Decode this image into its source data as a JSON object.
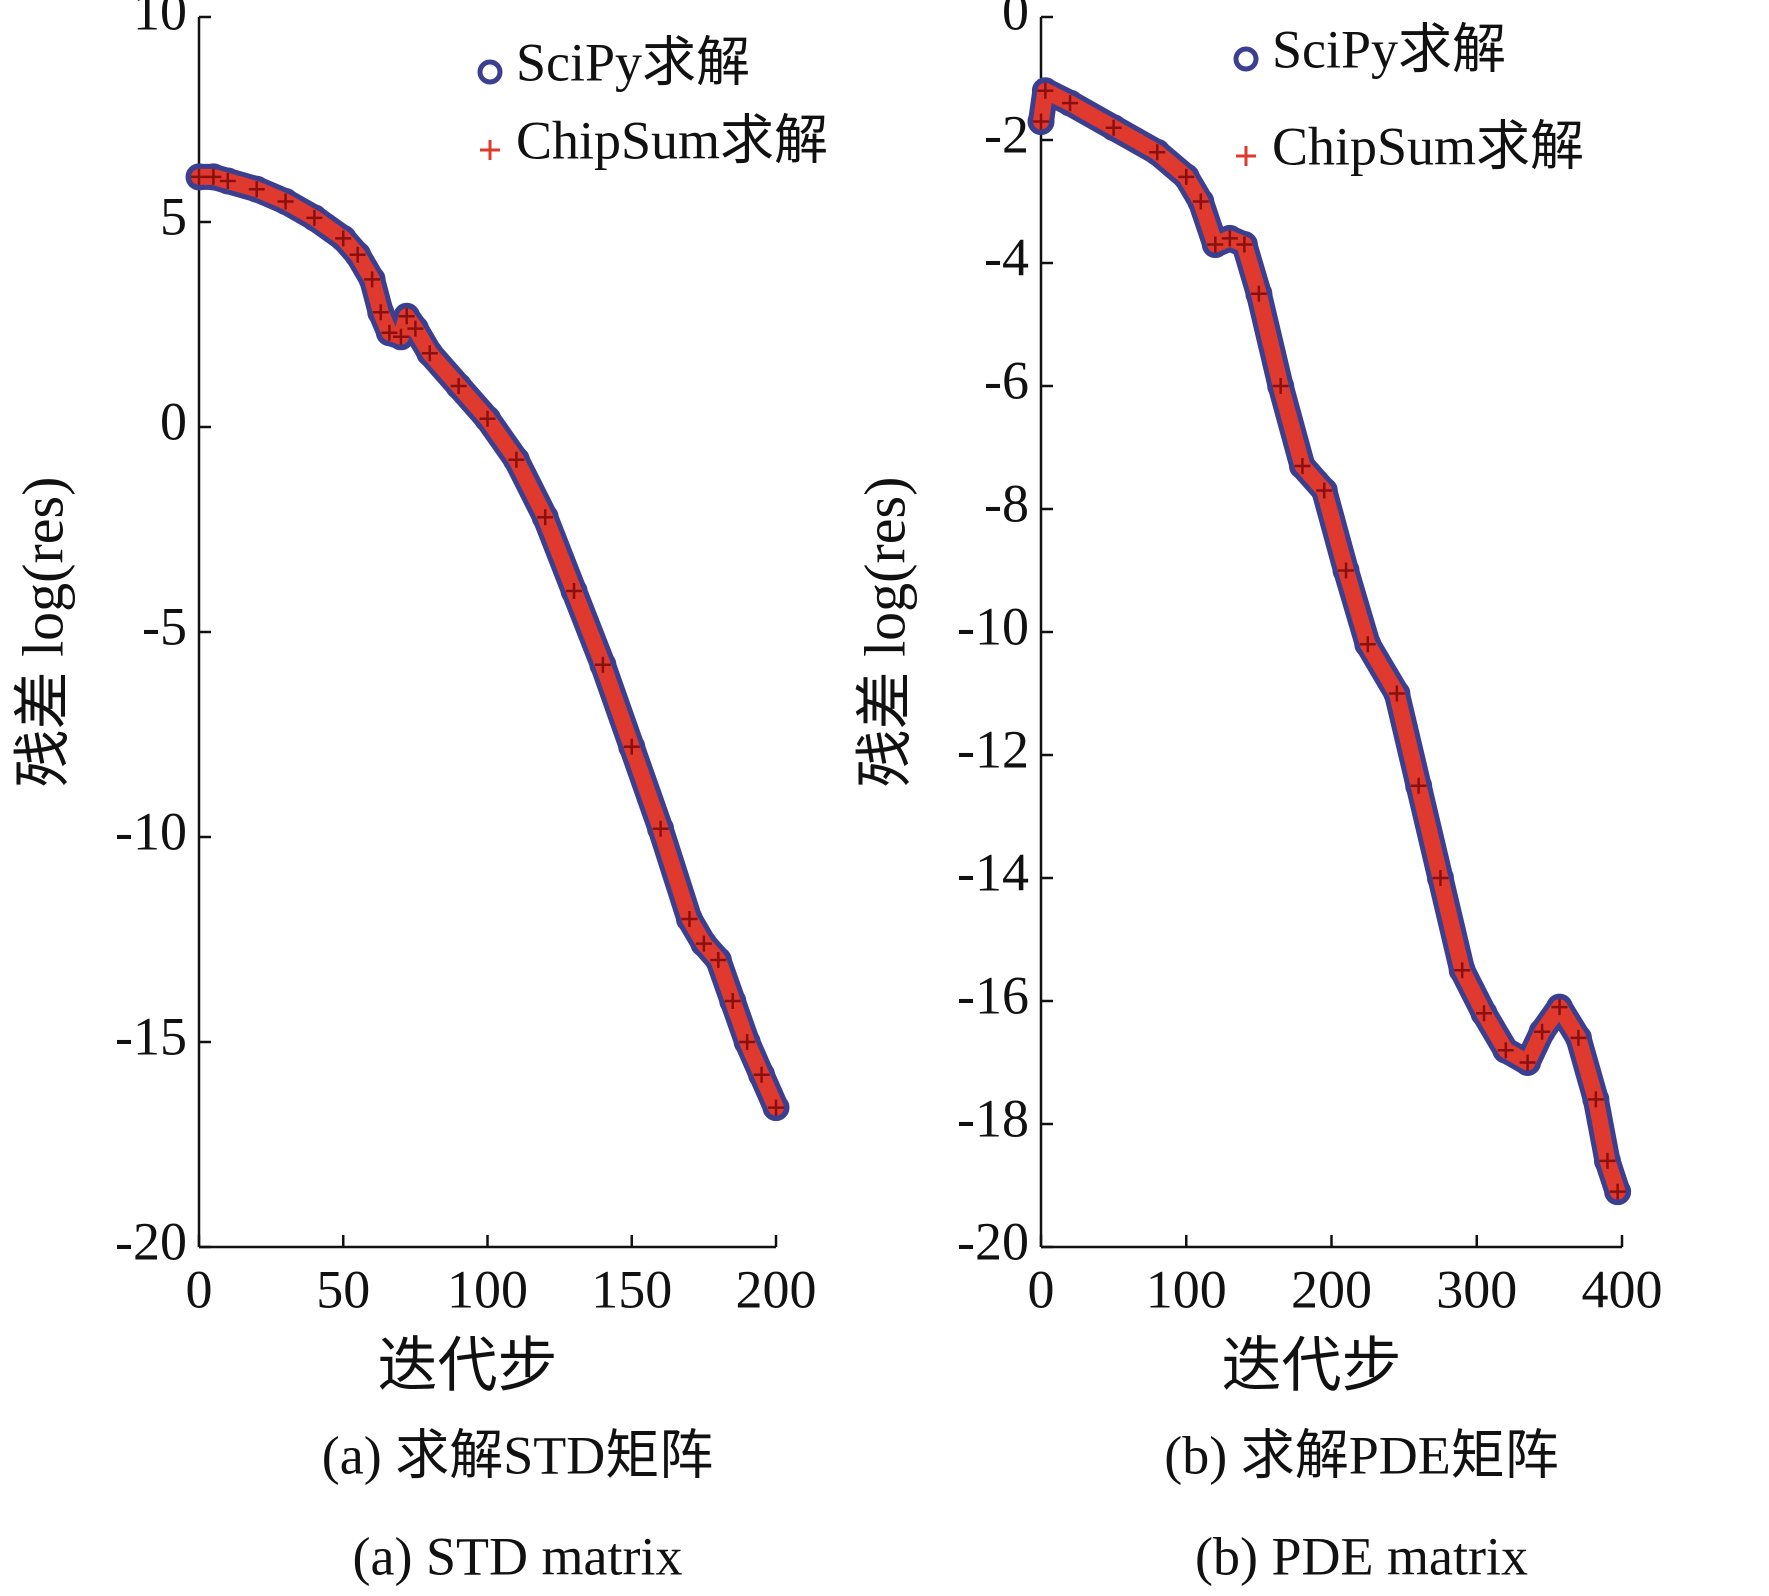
{
  "chart_data": [
    {
      "type": "scatter",
      "xlabel": "迭代步",
      "ylabel": "残差 log(res)",
      "caption": [
        "(a) 求解STD矩阵",
        "(a) STD matrix"
      ],
      "xlim": [
        0,
        200
      ],
      "ylim": [
        -20,
        10
      ],
      "xticks": [
        0,
        50,
        100,
        150,
        200
      ],
      "yticks": [
        -20,
        -15,
        -10,
        -5,
        0,
        5,
        10
      ],
      "legend": "upper right",
      "x": [
        0,
        5,
        10,
        20,
        30,
        40,
        50,
        55,
        60,
        63,
        66,
        70,
        72,
        75,
        80,
        90,
        100,
        110,
        120,
        130,
        140,
        150,
        160,
        170,
        175,
        180,
        185,
        190,
        195,
        200
      ],
      "series": [
        {
          "name": "SciPy求解",
          "color": "#3b3f8f",
          "marker": "circle",
          "values": [
            6.1,
            6.1,
            6.0,
            5.8,
            5.5,
            5.1,
            4.6,
            4.2,
            3.6,
            2.8,
            2.3,
            2.2,
            2.7,
            2.4,
            1.8,
            1.0,
            0.2,
            -0.8,
            -2.2,
            -4.0,
            -5.8,
            -7.8,
            -9.8,
            -12.0,
            -12.6,
            -13.0,
            -14.0,
            -15.0,
            -15.8,
            -16.6
          ]
        },
        {
          "name": "ChipSum求解",
          "color": "#e03a2f",
          "marker": "plus",
          "values": [
            6.1,
            6.1,
            6.0,
            5.8,
            5.5,
            5.1,
            4.6,
            4.2,
            3.6,
            2.8,
            2.3,
            2.2,
            2.7,
            2.4,
            1.8,
            1.0,
            0.2,
            -0.8,
            -2.2,
            -4.0,
            -5.8,
            -7.8,
            -9.8,
            -12.0,
            -12.6,
            -13.0,
            -14.0,
            -15.0,
            -15.8,
            -16.6
          ]
        }
      ]
    },
    {
      "type": "scatter",
      "xlabel": "迭代步",
      "ylabel": "残差 log(res)",
      "caption": [
        "(b) 求解PDE矩阵",
        "(b) PDE matrix"
      ],
      "xlim": [
        0,
        400
      ],
      "ylim": [
        -20,
        0
      ],
      "xticks": [
        0,
        100,
        200,
        300,
        400
      ],
      "yticks": [
        -20,
        -18,
        -16,
        -14,
        -12,
        -10,
        -8,
        -6,
        -4,
        -2,
        0
      ],
      "legend": "upper right",
      "x": [
        0,
        3,
        20,
        50,
        80,
        100,
        110,
        120,
        130,
        140,
        150,
        165,
        180,
        195,
        210,
        225,
        245,
        260,
        275,
        290,
        305,
        320,
        335,
        345,
        357,
        370,
        382,
        390,
        397
      ],
      "series": [
        {
          "name": "SciPy求解",
          "color": "#3b3f8f",
          "marker": "circle",
          "values": [
            -1.7,
            -1.2,
            -1.4,
            -1.8,
            -2.2,
            -2.6,
            -3.0,
            -3.7,
            -3.6,
            -3.7,
            -4.5,
            -6.0,
            -7.3,
            -7.7,
            -9.0,
            -10.2,
            -11.0,
            -12.5,
            -14.0,
            -15.5,
            -16.2,
            -16.8,
            -17.0,
            -16.5,
            -16.1,
            -16.6,
            -17.6,
            -18.6,
            -19.1
          ]
        },
        {
          "name": "ChipSum求解",
          "color": "#e03a2f",
          "marker": "plus",
          "values": [
            -1.7,
            -1.2,
            -1.4,
            -1.8,
            -2.2,
            -2.6,
            -3.0,
            -3.7,
            -3.6,
            -3.7,
            -4.5,
            -6.0,
            -7.3,
            -7.7,
            -9.0,
            -10.2,
            -11.0,
            -12.5,
            -14.0,
            -15.5,
            -16.2,
            -16.8,
            -17.0,
            -16.5,
            -16.1,
            -16.6,
            -17.6,
            -18.6,
            -19.1
          ]
        }
      ]
    }
  ]
}
